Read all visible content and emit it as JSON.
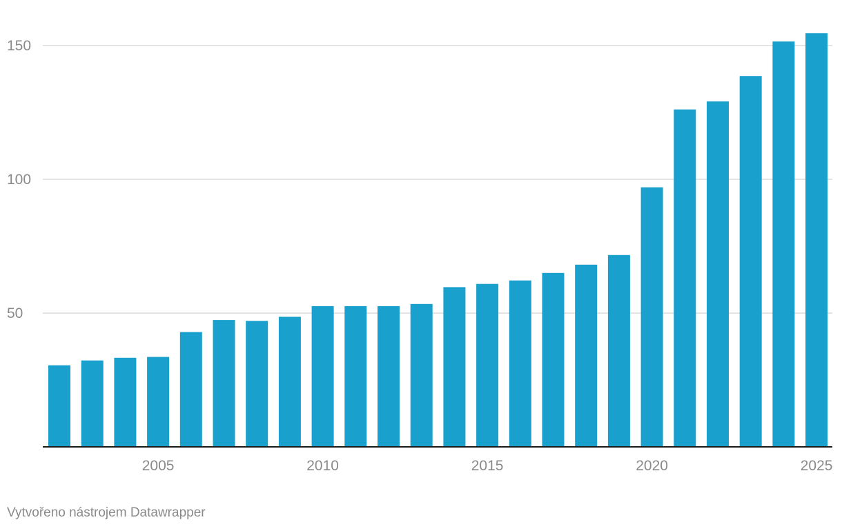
{
  "chart_data": {
    "type": "bar",
    "categories": [
      "2002",
      "2003",
      "2004",
      "2005",
      "2006",
      "2007",
      "2008",
      "2009",
      "2010",
      "2011",
      "2012",
      "2013",
      "2014",
      "2015",
      "2016",
      "2017",
      "2018",
      "2019",
      "2020",
      "2021",
      "2022",
      "2023",
      "2024",
      "2025"
    ],
    "values": [
      30.5,
      32.3,
      33.3,
      33.6,
      42.9,
      47.4,
      47.1,
      48.6,
      52.6,
      52.6,
      52.6,
      53.4,
      59.7,
      60.9,
      62.2,
      65.0,
      68.1,
      71.7,
      97.0,
      126.1,
      129.1,
      138.6,
      151.5,
      154.6
    ],
    "x_tick_labels": [
      "2005",
      "2010",
      "2015",
      "2020",
      "2025"
    ],
    "y_ticks": [
      50,
      100,
      150
    ],
    "ylim": [
      0,
      160
    ],
    "grid": true,
    "bar_color": "#1aa0cc",
    "title": "",
    "xlabel": "",
    "ylabel": ""
  },
  "footer": {
    "credit": "Vytvořeno nástrojem Datawrapper"
  }
}
